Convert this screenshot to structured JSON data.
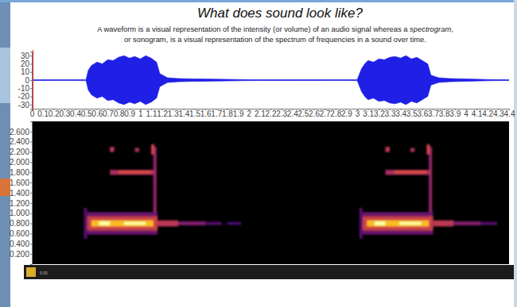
{
  "chart_data": [
    {
      "type": "area",
      "title": "What does sound look like?",
      "subtitle": [
        "A waveform is a visual representation of the intensity (or volume) of an audio signal whereas a spectrogram,",
        "or sonogram, is a visual representation of the spectrum of frequencies in a sound over time."
      ],
      "color": "#1f1fe6",
      "x": [
        0,
        0.5,
        0.52,
        0.55,
        0.6,
        0.65,
        0.7,
        0.75,
        0.8,
        0.85,
        0.9,
        0.95,
        1.0,
        1.05,
        1.1,
        1.15,
        1.18,
        1.25,
        1.35,
        1.5,
        1.7,
        1.9,
        2.1,
        2.5,
        3.0,
        3.04,
        3.07,
        3.1,
        3.15,
        3.2,
        3.25,
        3.3,
        3.35,
        3.4,
        3.45,
        3.5,
        3.55,
        3.6,
        3.65,
        3.68,
        3.75,
        3.85,
        4.0,
        4.2,
        4.4
      ],
      "values": [
        0.5,
        0.6,
        12,
        18,
        22,
        20,
        25,
        24,
        28,
        30,
        27,
        29,
        26,
        30,
        27,
        22,
        8,
        3,
        2,
        1.5,
        1.2,
        0.8,
        0.5,
        0.5,
        0.6,
        14,
        20,
        24,
        22,
        26,
        25,
        28,
        29,
        27,
        30,
        26,
        28,
        24,
        20,
        6,
        3,
        2,
        1.5,
        0.8,
        0.5
      ],
      "xlim": [
        0,
        4.4
      ],
      "xticks": [
        0,
        0.1,
        0.2,
        0.3,
        0.4,
        0.5,
        0.6,
        0.7,
        0.8,
        0.9,
        1,
        1.1,
        1.2,
        1.3,
        1.4,
        1.5,
        1.6,
        1.7,
        1.8,
        1.9,
        2,
        2.1,
        2.2,
        2.3,
        2.4,
        2.5,
        2.6,
        2.7,
        2.8,
        2.9,
        3,
        3.1,
        3.2,
        3.3,
        3.4,
        3.5,
        3.6,
        3.7,
        3.8,
        3.9,
        4,
        4.1,
        4.2,
        4.3,
        4.4
      ],
      "ylim": [
        -35,
        35
      ],
      "yticks": [
        -30,
        -20,
        -10,
        0,
        10,
        20,
        30
      ],
      "grid": false,
      "tick_labels": true
    },
    {
      "type": "heatmap",
      "xlim": [
        0,
        4.4
      ],
      "ylim": [
        0,
        2.8
      ],
      "yticks": [
        {
          "value": 0.2,
          "label": "0.200"
        },
        {
          "value": 0.4,
          "label": "0.400"
        },
        {
          "value": 0.6,
          "label": "0.600"
        },
        {
          "value": 0.8,
          "label": "0.800"
        },
        {
          "value": 1.0,
          "label": "1.000"
        },
        {
          "value": 1.2,
          "label": "1.200"
        },
        {
          "value": 1.4,
          "label": "1.400"
        },
        {
          "value": 1.6,
          "label": "1.600"
        },
        {
          "value": 1.8,
          "label": "1.800"
        },
        {
          "value": 2.0,
          "label": "2.000"
        },
        {
          "value": 2.2,
          "label": "2.200"
        },
        {
          "value": 2.4,
          "label": "2.400"
        },
        {
          "value": 2.6,
          "label": "2.600"
        }
      ],
      "zlim": [
        0,
        1
      ],
      "cells": [
        {
          "t0": 1.12,
          "t1": 1.15,
          "f0": 0.6,
          "f1": 2.3,
          "value": 0.4
        },
        {
          "t0": 0.48,
          "t1": 0.51,
          "f0": 0.5,
          "f1": 1.1,
          "value": 0.25
        },
        {
          "t0": 0.51,
          "t1": 1.16,
          "f0": 0.58,
          "f1": 0.66,
          "value": 0.3
        },
        {
          "t0": 0.51,
          "t1": 1.16,
          "f0": 0.94,
          "f1": 1.02,
          "value": 0.3
        },
        {
          "t0": 0.51,
          "t1": 1.16,
          "f0": 0.66,
          "f1": 0.94,
          "value": 0.55
        },
        {
          "t0": 0.55,
          "t1": 1.12,
          "f0": 0.74,
          "f1": 0.86,
          "value": 0.85
        },
        {
          "t0": 0.62,
          "t1": 0.72,
          "f0": 0.76,
          "f1": 0.84,
          "value": 1
        },
        {
          "t0": 0.85,
          "t1": 1.05,
          "f0": 0.77,
          "f1": 0.83,
          "value": 1
        },
        {
          "t0": 0.72,
          "t1": 1.14,
          "f0": 1.75,
          "f1": 1.85,
          "value": 0.45
        },
        {
          "t0": 0.8,
          "t1": 1.1,
          "f0": 1.78,
          "f1": 1.83,
          "value": 0.6
        },
        {
          "t0": 0.72,
          "t1": 0.76,
          "f0": 2.2,
          "f1": 2.3,
          "value": 0.5
        },
        {
          "t0": 0.95,
          "t1": 0.99,
          "f0": 2.2,
          "f1": 2.28,
          "value": 0.45
        },
        {
          "t0": 1.1,
          "t1": 1.13,
          "f0": 2.15,
          "f1": 2.35,
          "value": 0.55
        },
        {
          "t0": 1.16,
          "t1": 1.35,
          "f0": 0.74,
          "f1": 0.86,
          "value": 0.5
        },
        {
          "t0": 1.35,
          "t1": 1.6,
          "f0": 0.76,
          "f1": 0.84,
          "value": 0.35
        },
        {
          "t0": 1.6,
          "t1": 1.75,
          "f0": 0.77,
          "f1": 0.83,
          "value": 0.25
        },
        {
          "t0": 1.8,
          "t1": 1.93,
          "f0": 0.77,
          "f1": 0.83,
          "value": 0.2
        },
        {
          "t0": 3.66,
          "t1": 3.69,
          "f0": 0.6,
          "f1": 2.3,
          "value": 0.4
        },
        {
          "t0": 3.02,
          "t1": 3.05,
          "f0": 0.5,
          "f1": 1.1,
          "value": 0.25
        },
        {
          "t0": 3.05,
          "t1": 3.7,
          "f0": 0.58,
          "f1": 0.66,
          "value": 0.3
        },
        {
          "t0": 3.05,
          "t1": 3.7,
          "f0": 0.94,
          "f1": 1.02,
          "value": 0.3
        },
        {
          "t0": 3.05,
          "t1": 3.7,
          "f0": 0.66,
          "f1": 0.94,
          "value": 0.55
        },
        {
          "t0": 3.09,
          "t1": 3.66,
          "f0": 0.74,
          "f1": 0.86,
          "value": 0.85
        },
        {
          "t0": 3.16,
          "t1": 3.26,
          "f0": 0.76,
          "f1": 0.84,
          "value": 1
        },
        {
          "t0": 3.39,
          "t1": 3.59,
          "f0": 0.77,
          "f1": 0.83,
          "value": 1
        },
        {
          "t0": 3.26,
          "t1": 3.68,
          "f0": 1.75,
          "f1": 1.85,
          "value": 0.45
        },
        {
          "t0": 3.34,
          "t1": 3.64,
          "f0": 1.78,
          "f1": 1.83,
          "value": 0.6
        },
        {
          "t0": 3.26,
          "t1": 3.3,
          "f0": 2.2,
          "f1": 2.3,
          "value": 0.5
        },
        {
          "t0": 3.49,
          "t1": 3.53,
          "f0": 2.2,
          "f1": 2.28,
          "value": 0.45
        },
        {
          "t0": 3.64,
          "t1": 3.67,
          "f0": 2.15,
          "f1": 2.35,
          "value": 0.55
        },
        {
          "t0": 3.7,
          "t1": 3.89,
          "f0": 0.74,
          "f1": 0.86,
          "value": 0.5
        },
        {
          "t0": 3.89,
          "t1": 4.14,
          "f0": 0.76,
          "f1": 0.84,
          "value": 0.35
        },
        {
          "t0": 4.14,
          "t1": 4.29,
          "f0": 0.77,
          "f1": 0.83,
          "value": 0.25
        }
      ],
      "annotations": [
        "0:00"
      ],
      "grid": false,
      "tick_labels": "y"
    }
  ]
}
